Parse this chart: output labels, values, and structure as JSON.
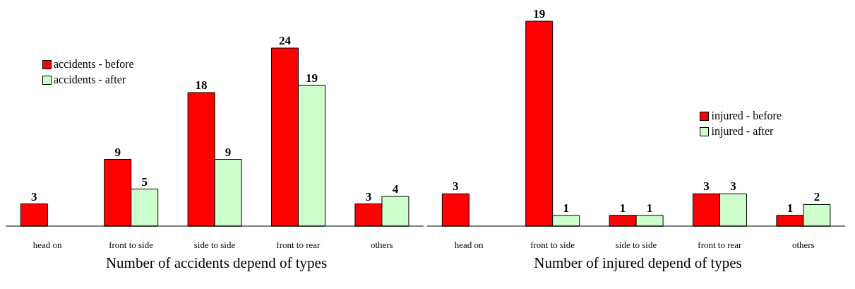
{
  "chart_data": [
    {
      "type": "bar",
      "title": "Number of accidents depend of types",
      "categories": [
        "head on",
        "front to side",
        "side to side",
        "front to rear",
        "others"
      ],
      "series": [
        {
          "name": "accidents - before",
          "color": "#ff0000",
          "values": [
            3,
            9,
            18,
            24,
            3
          ]
        },
        {
          "name": "accidents - after",
          "color": "#ccffcc",
          "values": [
            null,
            5,
            9,
            19,
            4
          ]
        }
      ],
      "data_labels": true,
      "legend": "top left",
      "grid": false
    },
    {
      "type": "bar",
      "title": "Number of injured depend of types",
      "categories": [
        "head on",
        "front to side",
        "side to side",
        "front to rear",
        "others"
      ],
      "series": [
        {
          "name": "injured - before",
          "color": "#ff0000",
          "values": [
            3,
            19,
            1,
            3,
            1
          ]
        },
        {
          "name": "injured - after",
          "color": "#ccffcc",
          "values": [
            null,
            1,
            1,
            3,
            2
          ]
        }
      ],
      "data_labels": true,
      "legend": "right",
      "grid": false
    }
  ]
}
